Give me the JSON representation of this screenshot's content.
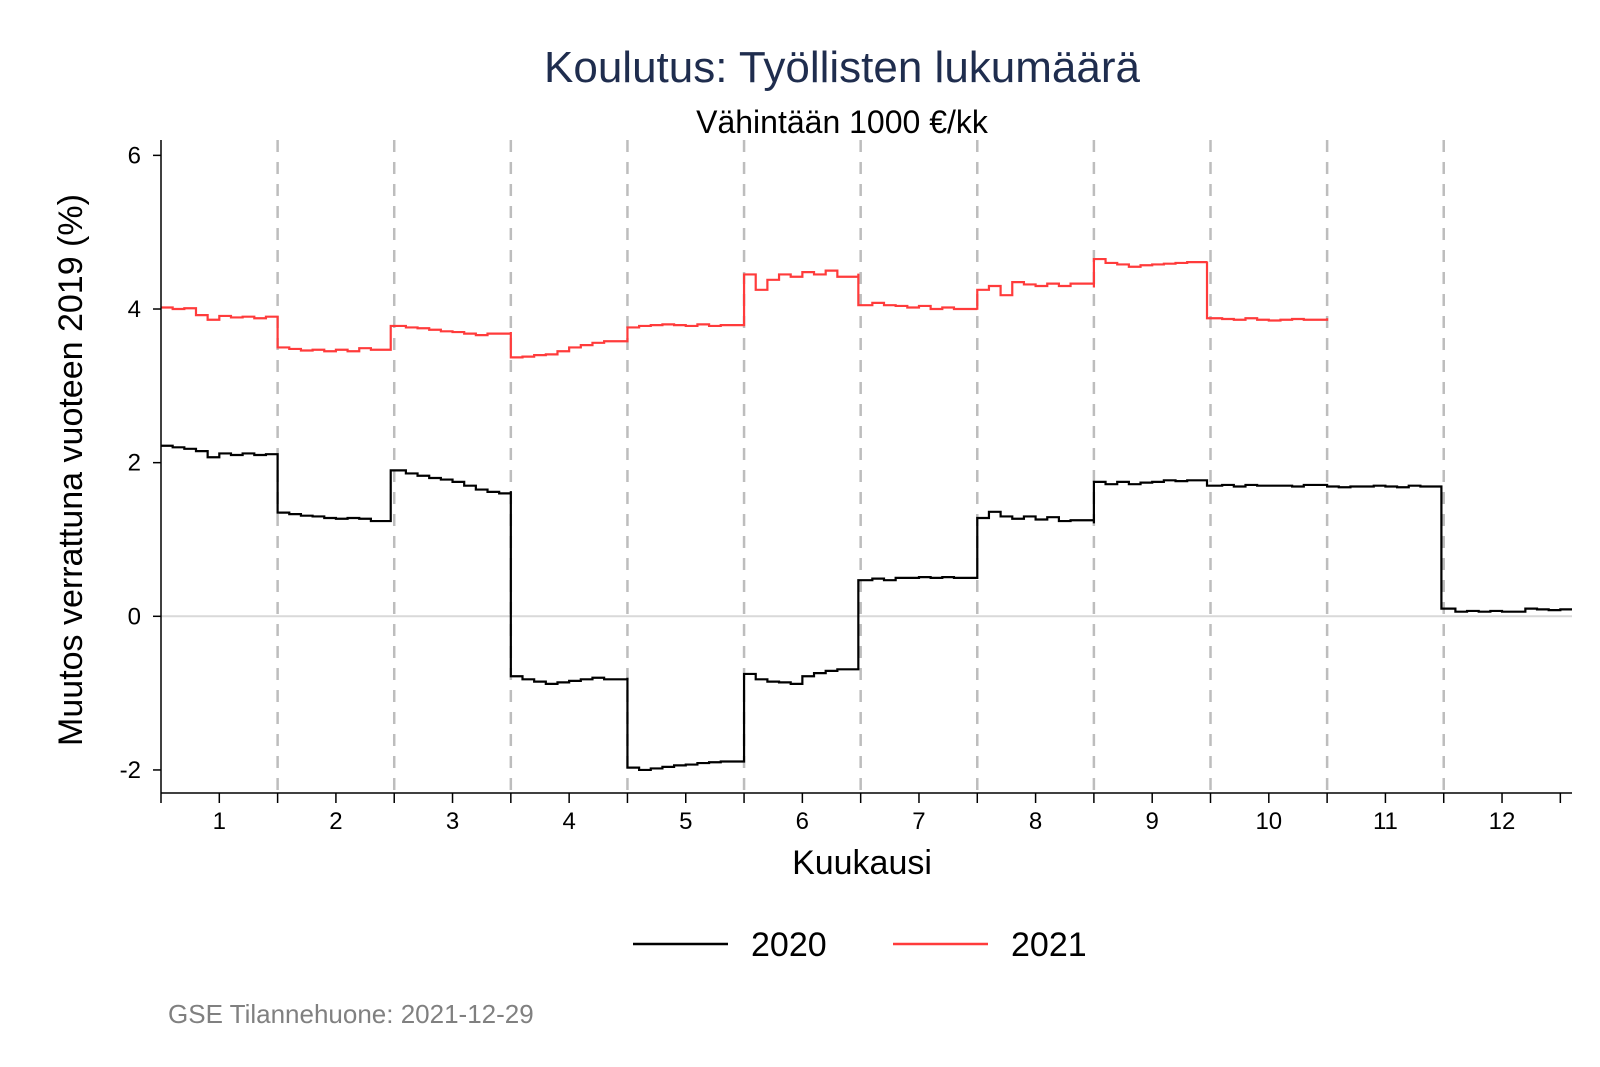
{
  "chart_data": {
    "type": "line",
    "title": "Koulutus: Työllisten lukumäärä",
    "subtitle": "Vähintään 1000 €/kk",
    "xlabel": "Kuukausi",
    "ylabel": "Muutos verrattuna vuoteen 2019 (%)",
    "xlim": [
      0.5,
      12.6
    ],
    "ylim": [
      -2.3,
      6.2
    ],
    "x_ticks": [
      "1",
      "2",
      "3",
      "4",
      "5",
      "6",
      "7",
      "8",
      "9",
      "10",
      "11",
      "12"
    ],
    "y_ticks": [
      "6",
      "4",
      "2",
      "0",
      "-2"
    ],
    "grid": false,
    "month_separators": true,
    "zero_line": true,
    "legend_position": "bottom",
    "series": [
      {
        "name": "2020",
        "color": "#000000",
        "points": [
          [
            0.5,
            2.22
          ],
          [
            0.6,
            2.2
          ],
          [
            0.7,
            2.18
          ],
          [
            0.8,
            2.15
          ],
          [
            0.9,
            2.07
          ],
          [
            1.0,
            2.12
          ],
          [
            1.1,
            2.1
          ],
          [
            1.2,
            2.12
          ],
          [
            1.3,
            2.1
          ],
          [
            1.4,
            2.11
          ],
          [
            1.5,
            2.1
          ],
          [
            1.5,
            1.35
          ],
          [
            1.6,
            1.33
          ],
          [
            1.7,
            1.31
          ],
          [
            1.8,
            1.3
          ],
          [
            1.9,
            1.28
          ],
          [
            2.0,
            1.27
          ],
          [
            2.1,
            1.28
          ],
          [
            2.2,
            1.27
          ],
          [
            2.3,
            1.24
          ],
          [
            2.47,
            1.24
          ],
          [
            2.47,
            1.9
          ],
          [
            2.6,
            1.86
          ],
          [
            2.7,
            1.83
          ],
          [
            2.8,
            1.8
          ],
          [
            2.9,
            1.78
          ],
          [
            3.0,
            1.75
          ],
          [
            3.1,
            1.7
          ],
          [
            3.2,
            1.65
          ],
          [
            3.3,
            1.62
          ],
          [
            3.4,
            1.6
          ],
          [
            3.5,
            1.63
          ],
          [
            3.5,
            -0.78
          ],
          [
            3.6,
            -0.82
          ],
          [
            3.7,
            -0.85
          ],
          [
            3.8,
            -0.88
          ],
          [
            3.9,
            -0.86
          ],
          [
            4.0,
            -0.84
          ],
          [
            4.1,
            -0.82
          ],
          [
            4.2,
            -0.8
          ],
          [
            4.3,
            -0.82
          ],
          [
            4.5,
            -0.8
          ],
          [
            4.5,
            -1.97
          ],
          [
            4.6,
            -2.0
          ],
          [
            4.7,
            -1.98
          ],
          [
            4.8,
            -1.96
          ],
          [
            4.9,
            -1.94
          ],
          [
            5.0,
            -1.93
          ],
          [
            5.1,
            -1.91
          ],
          [
            5.2,
            -1.9
          ],
          [
            5.3,
            -1.89
          ],
          [
            5.5,
            -1.88
          ],
          [
            5.5,
            -0.75
          ],
          [
            5.6,
            -0.82
          ],
          [
            5.7,
            -0.85
          ],
          [
            5.8,
            -0.86
          ],
          [
            5.9,
            -0.88
          ],
          [
            6.0,
            -0.78
          ],
          [
            6.1,
            -0.74
          ],
          [
            6.2,
            -0.71
          ],
          [
            6.3,
            -0.69
          ],
          [
            6.48,
            -0.63
          ],
          [
            6.48,
            0.47
          ],
          [
            6.6,
            0.49
          ],
          [
            6.7,
            0.47
          ],
          [
            6.8,
            0.5
          ],
          [
            6.9,
            0.5
          ],
          [
            7.0,
            0.51
          ],
          [
            7.1,
            0.5
          ],
          [
            7.2,
            0.51
          ],
          [
            7.3,
            0.5
          ],
          [
            7.5,
            0.5
          ],
          [
            7.5,
            1.28
          ],
          [
            7.6,
            1.36
          ],
          [
            7.7,
            1.3
          ],
          [
            7.8,
            1.27
          ],
          [
            7.9,
            1.3
          ],
          [
            8.0,
            1.26
          ],
          [
            8.1,
            1.29
          ],
          [
            8.2,
            1.24
          ],
          [
            8.3,
            1.25
          ],
          [
            8.5,
            1.21
          ],
          [
            8.5,
            1.75
          ],
          [
            8.6,
            1.72
          ],
          [
            8.7,
            1.75
          ],
          [
            8.8,
            1.72
          ],
          [
            8.9,
            1.74
          ],
          [
            9.0,
            1.75
          ],
          [
            9.1,
            1.77
          ],
          [
            9.2,
            1.76
          ],
          [
            9.3,
            1.77
          ],
          [
            9.47,
            1.75
          ],
          [
            9.47,
            1.7
          ],
          [
            9.6,
            1.71
          ],
          [
            9.7,
            1.69
          ],
          [
            9.8,
            1.71
          ],
          [
            9.9,
            1.7
          ],
          [
            10.0,
            1.7
          ],
          [
            10.1,
            1.7
          ],
          [
            10.2,
            1.69
          ],
          [
            10.3,
            1.71
          ],
          [
            10.5,
            1.69
          ],
          [
            10.6,
            1.68
          ],
          [
            10.7,
            1.69
          ],
          [
            10.8,
            1.69
          ],
          [
            10.9,
            1.7
          ],
          [
            11.0,
            1.69
          ],
          [
            11.1,
            1.68
          ],
          [
            11.2,
            1.7
          ],
          [
            11.3,
            1.69
          ],
          [
            11.48,
            1.69
          ],
          [
            11.48,
            0.1
          ],
          [
            11.6,
            0.06
          ],
          [
            11.7,
            0.07
          ],
          [
            11.8,
            0.06
          ],
          [
            11.9,
            0.07
          ],
          [
            12.0,
            0.06
          ],
          [
            12.1,
            0.06
          ],
          [
            12.2,
            0.1
          ],
          [
            12.3,
            0.09
          ],
          [
            12.4,
            0.08
          ],
          [
            12.5,
            0.09
          ],
          [
            12.6,
            0.09
          ]
        ]
      },
      {
        "name": "2021",
        "color": "#ff3b3b",
        "points": [
          [
            0.5,
            4.02
          ],
          [
            0.6,
            4.0
          ],
          [
            0.7,
            4.01
          ],
          [
            0.8,
            3.92
          ],
          [
            0.9,
            3.86
          ],
          [
            1.0,
            3.91
          ],
          [
            1.1,
            3.89
          ],
          [
            1.2,
            3.9
          ],
          [
            1.3,
            3.88
          ],
          [
            1.4,
            3.9
          ],
          [
            1.5,
            3.89
          ],
          [
            1.5,
            3.5
          ],
          [
            1.6,
            3.48
          ],
          [
            1.7,
            3.46
          ],
          [
            1.8,
            3.47
          ],
          [
            1.9,
            3.45
          ],
          [
            2.0,
            3.47
          ],
          [
            2.1,
            3.45
          ],
          [
            2.2,
            3.49
          ],
          [
            2.3,
            3.47
          ],
          [
            2.47,
            3.47
          ],
          [
            2.47,
            3.78
          ],
          [
            2.6,
            3.76
          ],
          [
            2.7,
            3.75
          ],
          [
            2.8,
            3.73
          ],
          [
            2.9,
            3.71
          ],
          [
            3.0,
            3.7
          ],
          [
            3.1,
            3.68
          ],
          [
            3.2,
            3.66
          ],
          [
            3.3,
            3.68
          ],
          [
            3.5,
            3.7
          ],
          [
            3.5,
            3.37
          ],
          [
            3.6,
            3.38
          ],
          [
            3.7,
            3.4
          ],
          [
            3.8,
            3.41
          ],
          [
            3.9,
            3.45
          ],
          [
            4.0,
            3.5
          ],
          [
            4.1,
            3.53
          ],
          [
            4.2,
            3.56
          ],
          [
            4.3,
            3.58
          ],
          [
            4.5,
            3.6
          ],
          [
            4.5,
            3.76
          ],
          [
            4.6,
            3.78
          ],
          [
            4.7,
            3.79
          ],
          [
            4.8,
            3.8
          ],
          [
            4.9,
            3.79
          ],
          [
            5.0,
            3.78
          ],
          [
            5.1,
            3.8
          ],
          [
            5.2,
            3.78
          ],
          [
            5.3,
            3.79
          ],
          [
            5.5,
            3.8
          ],
          [
            5.5,
            4.45
          ],
          [
            5.6,
            4.25
          ],
          [
            5.7,
            4.38
          ],
          [
            5.8,
            4.45
          ],
          [
            5.9,
            4.42
          ],
          [
            6.0,
            4.48
          ],
          [
            6.1,
            4.45
          ],
          [
            6.2,
            4.5
          ],
          [
            6.3,
            4.42
          ],
          [
            6.48,
            4.46
          ],
          [
            6.48,
            4.05
          ],
          [
            6.6,
            4.08
          ],
          [
            6.7,
            4.05
          ],
          [
            6.8,
            4.04
          ],
          [
            6.9,
            4.02
          ],
          [
            7.0,
            4.04
          ],
          [
            7.1,
            4.0
          ],
          [
            7.2,
            4.02
          ],
          [
            7.3,
            4.0
          ],
          [
            7.5,
            3.99
          ],
          [
            7.5,
            4.25
          ],
          [
            7.6,
            4.3
          ],
          [
            7.7,
            4.18
          ],
          [
            7.8,
            4.35
          ],
          [
            7.9,
            4.32
          ],
          [
            8.0,
            4.3
          ],
          [
            8.1,
            4.33
          ],
          [
            8.2,
            4.3
          ],
          [
            8.3,
            4.33
          ],
          [
            8.5,
            4.28
          ],
          [
            8.5,
            4.65
          ],
          [
            8.6,
            4.6
          ],
          [
            8.7,
            4.58
          ],
          [
            8.8,
            4.55
          ],
          [
            8.9,
            4.57
          ],
          [
            9.0,
            4.58
          ],
          [
            9.1,
            4.59
          ],
          [
            9.2,
            4.6
          ],
          [
            9.3,
            4.61
          ],
          [
            9.47,
            4.62
          ],
          [
            9.47,
            3.88
          ],
          [
            9.6,
            3.87
          ],
          [
            9.7,
            3.86
          ],
          [
            9.8,
            3.88
          ],
          [
            9.9,
            3.86
          ],
          [
            10.0,
            3.85
          ],
          [
            10.1,
            3.86
          ],
          [
            10.2,
            3.87
          ],
          [
            10.3,
            3.86
          ],
          [
            10.5,
            3.88
          ]
        ]
      }
    ]
  },
  "footer": {
    "note": "GSE Tilannehuone: 2021-12-29"
  }
}
